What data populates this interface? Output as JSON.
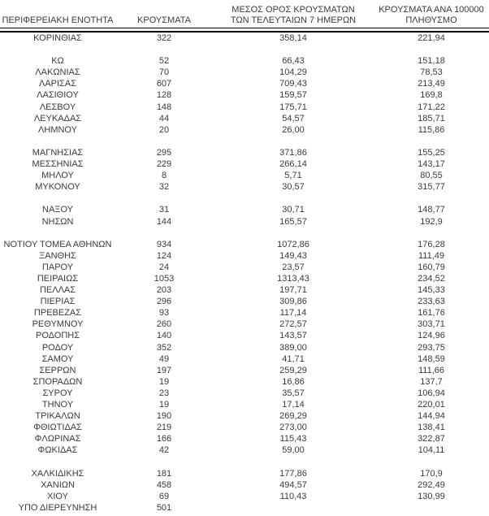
{
  "page": {
    "background_color": "#ffffff",
    "text_color": "#3a3a3a",
    "rule_color": "#000000"
  },
  "table": {
    "headers": [
      {
        "id": "region",
        "lines": [
          "ΠΕΡΙΦΕΡΕΙΑΚΗ ΕΝΟΤΗΤΑ"
        ]
      },
      {
        "id": "cases",
        "lines": [
          "ΚΡΟΥΣΜΑΤΑ"
        ]
      },
      {
        "id": "avg7",
        "lines": [
          "ΜΕΣΟΣ ΟΡΟΣ ΚΡΟΥΣΜΑΤΩΝ",
          "ΤΩΝ ΤΕΛΕΥΤΑΙΩΝ 7 ΗΜΕΡΩΝ"
        ]
      },
      {
        "id": "per100k",
        "lines": [
          "ΚΡΟΥΣΜΑΤΑ ΑΝΑ 100000",
          "ΠΛΗΘΥΣΜΟ"
        ]
      }
    ],
    "groups": [
      [
        [
          "ΚΟΡΙΝΘΙΑΣ",
          "322",
          "358,14",
          "221,94"
        ]
      ],
      [
        [
          "ΚΩ",
          "52",
          "66,43",
          "151,18"
        ],
        [
          "ΛΑΚΩΝΙΑΣ",
          "70",
          "104,29",
          "78,53"
        ],
        [
          "ΛΑΡΙΣΑΣ",
          "607",
          "709,43",
          "213,49"
        ],
        [
          "ΛΑΣΙΘΙΟΥ",
          "128",
          "159,57",
          "169,8"
        ],
        [
          "ΛΕΣΒΟΥ",
          "148",
          "175,71",
          "171,22"
        ],
        [
          "ΛΕΥΚΑΔΑΣ",
          "44",
          "54,57",
          "185,71"
        ],
        [
          "ΛΗΜΝΟΥ",
          "20",
          "26,00",
          "115,86"
        ]
      ],
      [
        [
          "ΜΑΓΝΗΣΙΑΣ",
          "295",
          "371,86",
          "155,25"
        ],
        [
          "ΜΕΣΣΗΝΙΑΣ",
          "229",
          "266,14",
          "143,17"
        ],
        [
          "ΜΗΛΟΥ",
          "8",
          "5,71",
          "80,55"
        ],
        [
          "ΜΥΚΟΝΟΥ",
          "32",
          "30,57",
          "315,77"
        ]
      ],
      [
        [
          "ΝΑΞΟΥ",
          "31",
          "30,71",
          "148,77"
        ],
        [
          "ΝΗΣΩΝ",
          "144",
          "165,57",
          "192,9"
        ]
      ],
      [
        [
          "ΝΟΤΙΟΥ ΤΟΜΕΑ ΑΘΗΝΩΝ",
          "934",
          "1072,86",
          "176,28"
        ],
        [
          "ΞΑΝΘΗΣ",
          "124",
          "149,43",
          "111,49"
        ],
        [
          "ΠΑΡΟΥ",
          "24",
          "23,57",
          "160,79"
        ],
        [
          "ΠΕΙΡΑΙΩΣ",
          "1053",
          "1313,43",
          "234,52"
        ],
        [
          "ΠΕΛΛΑΣ",
          "203",
          "197,71",
          "145,33"
        ],
        [
          "ΠΙΕΡΙΑΣ",
          "296",
          "309,86",
          "233,63"
        ],
        [
          "ΠΡΕΒΕΖΑΣ",
          "93",
          "117,14",
          "161,76"
        ],
        [
          "ΡΕΘΥΜΝΟΥ",
          "260",
          "272,57",
          "303,71"
        ],
        [
          "ΡΟΔΟΠΗΣ",
          "140",
          "143,57",
          "124,96"
        ],
        [
          "ΡΟΔΟΥ",
          "352",
          "389,00",
          "293,75"
        ],
        [
          "ΣΑΜΟΥ",
          "49",
          "41,71",
          "148,59"
        ],
        [
          "ΣΕΡΡΩΝ",
          "197",
          "259,29",
          "111,66"
        ],
        [
          "ΣΠΟΡΑΔΩΝ",
          "19",
          "16,86",
          "137,7"
        ],
        [
          "ΣΥΡΟΥ",
          "23",
          "35,57",
          "106,94"
        ],
        [
          "ΤΗΝΟΥ",
          "19",
          "17,14",
          "220,01"
        ],
        [
          "ΤΡΙΚΑΛΩΝ",
          "190",
          "269,29",
          "144,94"
        ],
        [
          "ΦΘΙΩΤΙΔΑΣ",
          "219",
          "273,00",
          "138,41"
        ],
        [
          "ΦΛΩΡΙΝΑΣ",
          "166",
          "115,43",
          "322,87"
        ],
        [
          "ΦΩΚΙΔΑΣ",
          "42",
          "59,00",
          "104,11"
        ]
      ],
      [
        [
          "ΧΑΛΚΙΔΙΚΗΣ",
          "181",
          "177,86",
          "170,9"
        ],
        [
          "ΧΑΝΙΩΝ",
          "458",
          "494,57",
          "292,49"
        ],
        [
          "ΧΙΟΥ",
          "69",
          "110,43",
          "130,99"
        ],
        [
          "ΥΠΟ ΔΙΕΡΕΥΝΗΣΗ",
          "501",
          "",
          ""
        ]
      ]
    ]
  }
}
